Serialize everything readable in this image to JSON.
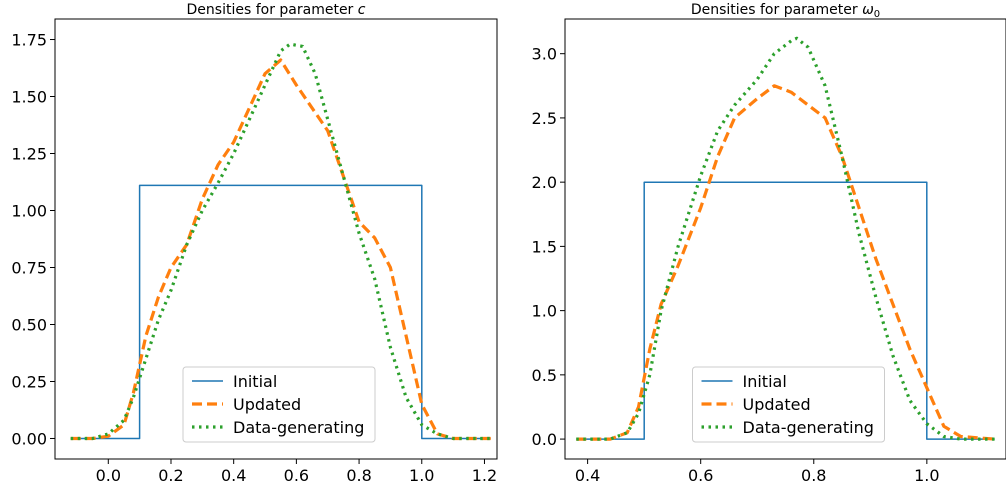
{
  "chart_data": [
    {
      "type": "line",
      "title": "Densities for parameter c",
      "title_main": "Densities for parameter ",
      "title_symbol": "c",
      "title_subscript": "",
      "xlabel": "",
      "ylabel": "",
      "xlim": [
        -0.17,
        1.24
      ],
      "ylim": [
        -0.09,
        1.84
      ],
      "xticks": [
        0.0,
        0.2,
        0.4,
        0.6,
        0.8,
        1.0,
        1.2
      ],
      "xtick_labels": [
        "0.0",
        "0.2",
        "0.4",
        "0.6",
        "0.8",
        "1.0",
        "1.2"
      ],
      "yticks": [
        0.0,
        0.25,
        0.5,
        0.75,
        1.0,
        1.25,
        1.5,
        1.75
      ],
      "ytick_labels": [
        "0.00",
        "0.25",
        "0.50",
        "0.75",
        "1.00",
        "1.25",
        "1.50",
        "1.75"
      ],
      "legend_position": "lower-center",
      "series": [
        {
          "name": "Initial",
          "color": "#1f77b4",
          "style": "solid",
          "x": [
            -0.12,
            0.1,
            0.1,
            1.0,
            1.0,
            1.22
          ],
          "y": [
            0.0,
            0.0,
            1.11,
            1.11,
            0.0,
            0.0
          ]
        },
        {
          "name": "Updated",
          "color": "#ff7f0e",
          "style": "dashed",
          "x": [
            -0.12,
            -0.05,
            0.0,
            0.05,
            0.08,
            0.12,
            0.16,
            0.2,
            0.25,
            0.3,
            0.35,
            0.4,
            0.45,
            0.5,
            0.55,
            0.6,
            0.65,
            0.7,
            0.75,
            0.8,
            0.85,
            0.9,
            0.95,
            1.0,
            1.05,
            1.1,
            1.15,
            1.22
          ],
          "y": [
            0.0,
            0.0,
            0.01,
            0.06,
            0.2,
            0.45,
            0.62,
            0.75,
            0.85,
            1.05,
            1.2,
            1.3,
            1.45,
            1.6,
            1.66,
            1.55,
            1.45,
            1.35,
            1.15,
            0.95,
            0.88,
            0.75,
            0.45,
            0.15,
            0.02,
            0.0,
            0.0,
            0.0
          ]
        },
        {
          "name": "Data-generating",
          "color": "#2ca02c",
          "style": "dotted",
          "x": [
            -0.12,
            -0.05,
            0.0,
            0.05,
            0.08,
            0.12,
            0.16,
            0.2,
            0.25,
            0.3,
            0.35,
            0.4,
            0.45,
            0.5,
            0.55,
            0.58,
            0.62,
            0.66,
            0.7,
            0.75,
            0.8,
            0.85,
            0.9,
            0.95,
            1.0,
            1.05,
            1.1,
            1.15,
            1.22
          ],
          "y": [
            0.0,
            0.0,
            0.02,
            0.08,
            0.18,
            0.35,
            0.52,
            0.65,
            0.85,
            1.0,
            1.12,
            1.25,
            1.4,
            1.55,
            1.7,
            1.73,
            1.72,
            1.6,
            1.4,
            1.15,
            0.9,
            0.7,
            0.4,
            0.18,
            0.06,
            0.02,
            0.0,
            0.0,
            0.0
          ]
        }
      ]
    },
    {
      "type": "line",
      "title": "Densities for parameter ω0",
      "title_main": "Densities for parameter ",
      "title_symbol": "ω",
      "title_subscript": "0",
      "xlabel": "",
      "ylabel": "",
      "xlim": [
        0.36,
        1.14
      ],
      "ylim": [
        -0.155,
        3.27
      ],
      "xticks": [
        0.4,
        0.6,
        0.8,
        1.0
      ],
      "xtick_labels": [
        "0.4",
        "0.6",
        "0.8",
        "1.0"
      ],
      "yticks": [
        0.0,
        0.5,
        1.0,
        1.5,
        2.0,
        2.5,
        3.0
      ],
      "ytick_labels": [
        "0.0",
        "0.5",
        "1.0",
        "1.5",
        "2.0",
        "2.5",
        "3.0"
      ],
      "legend_position": "lower-center",
      "series": [
        {
          "name": "Initial",
          "color": "#1f77b4",
          "style": "solid",
          "x": [
            0.38,
            0.5,
            0.5,
            1.0,
            1.0,
            1.12
          ],
          "y": [
            0.0,
            0.0,
            2.0,
            2.0,
            0.0,
            0.0
          ]
        },
        {
          "name": "Updated",
          "color": "#ff7f0e",
          "style": "dashed",
          "x": [
            0.38,
            0.44,
            0.47,
            0.49,
            0.51,
            0.53,
            0.56,
            0.6,
            0.63,
            0.66,
            0.7,
            0.73,
            0.76,
            0.79,
            0.82,
            0.85,
            0.88,
            0.91,
            0.94,
            0.97,
            1.0,
            1.03,
            1.06,
            1.12
          ],
          "y": [
            0.0,
            0.0,
            0.05,
            0.25,
            0.7,
            1.05,
            1.35,
            1.8,
            2.2,
            2.5,
            2.65,
            2.75,
            2.7,
            2.6,
            2.5,
            2.2,
            1.8,
            1.4,
            1.05,
            0.7,
            0.4,
            0.1,
            0.02,
            0.0
          ]
        },
        {
          "name": "Data-generating",
          "color": "#2ca02c",
          "style": "dotted",
          "x": [
            0.38,
            0.44,
            0.47,
            0.49,
            0.51,
            0.53,
            0.56,
            0.6,
            0.63,
            0.66,
            0.7,
            0.73,
            0.76,
            0.77,
            0.79,
            0.82,
            0.85,
            0.88,
            0.91,
            0.94,
            0.97,
            1.0,
            1.03,
            1.06,
            1.12
          ],
          "y": [
            0.0,
            0.0,
            0.05,
            0.2,
            0.5,
            1.0,
            1.5,
            2.05,
            2.4,
            2.6,
            2.8,
            3.0,
            3.1,
            3.12,
            3.05,
            2.75,
            2.2,
            1.6,
            1.1,
            0.65,
            0.3,
            0.12,
            0.02,
            0.0,
            0.0
          ]
        }
      ]
    }
  ]
}
